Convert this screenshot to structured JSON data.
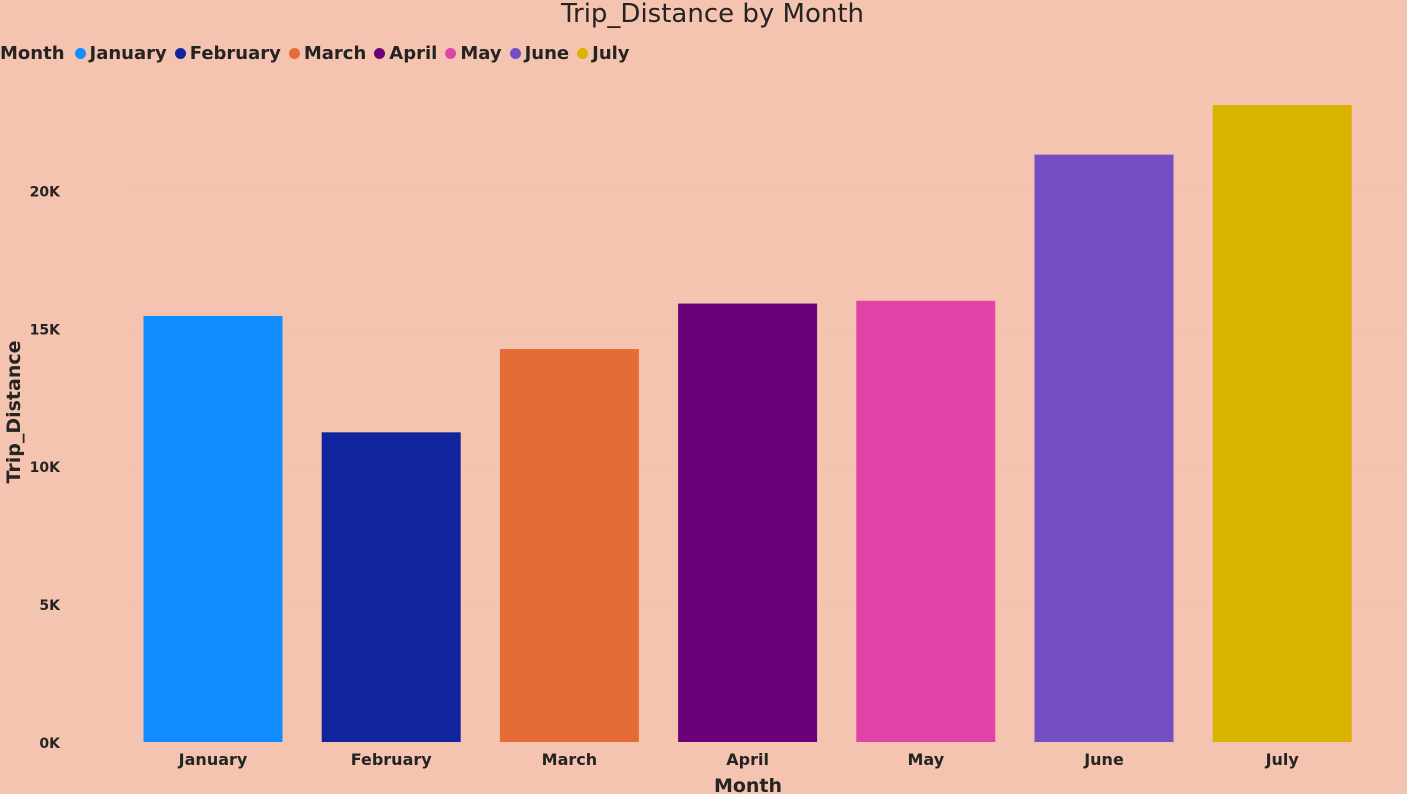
{
  "chart_data": {
    "type": "bar",
    "title": "Trip_Distance by Month",
    "xlabel": "Month",
    "ylabel": "Trip_Distance",
    "legend_title": "Month",
    "legend_placement": "top-left",
    "categories": [
      "January",
      "February",
      "March",
      "April",
      "May",
      "June",
      "July"
    ],
    "values": [
      15450,
      11230,
      14250,
      15900,
      16000,
      21300,
      23100
    ],
    "colors": [
      "#118dff",
      "#12239e",
      "#e66c37",
      "#6b007b",
      "#e044a7",
      "#744ec2",
      "#d9b300"
    ],
    "yticks": [
      0,
      5000,
      10000,
      15000,
      20000
    ],
    "ytick_labels": [
      "0K",
      "5K",
      "10K",
      "15K",
      "20K"
    ],
    "ylim": [
      0,
      23100
    ],
    "grid": true
  }
}
